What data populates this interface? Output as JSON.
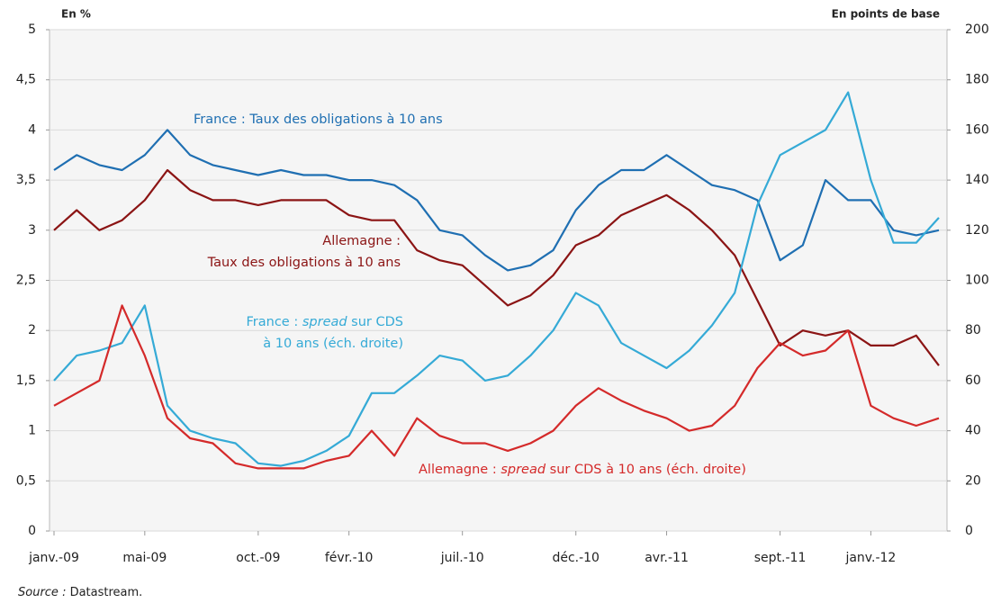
{
  "chart_data": {
    "type": "line",
    "categories": [
      "janv.-09",
      null,
      null,
      null,
      "mai-09",
      null,
      null,
      null,
      null,
      "oct.-09",
      null,
      null,
      null,
      "févr.-10",
      null,
      null,
      null,
      null,
      "juil.-10",
      null,
      null,
      null,
      null,
      "déc.-10",
      null,
      null,
      null,
      "avr.-11",
      null,
      null,
      null,
      null,
      "sept.-11",
      null,
      null,
      null,
      "janv.-12",
      null,
      null,
      null
    ],
    "series": [
      {
        "name": "France : Taux des obligations à 10 ans",
        "color": "#1f6fb2",
        "axis": "y",
        "values": [
          3.6,
          3.75,
          3.65,
          3.6,
          3.75,
          4.0,
          3.75,
          3.65,
          3.6,
          3.55,
          3.6,
          3.55,
          3.55,
          3.5,
          3.5,
          3.45,
          3.3,
          3.0,
          2.95,
          2.75,
          2.6,
          2.65,
          2.8,
          3.2,
          3.45,
          3.6,
          3.6,
          3.75,
          3.6,
          3.45,
          3.4,
          3.3,
          2.7,
          2.85,
          3.5,
          3.3,
          3.3,
          3.0,
          2.95,
          3.0
        ]
      },
      {
        "name": "Allemagne : Taux des obligations à 10 ans",
        "color": "#8b1414",
        "axis": "y",
        "values": [
          3.0,
          3.2,
          3.0,
          3.1,
          3.3,
          3.6,
          3.4,
          3.3,
          3.3,
          3.25,
          3.3,
          3.3,
          3.3,
          3.15,
          3.1,
          3.1,
          2.8,
          2.7,
          2.65,
          2.45,
          2.25,
          2.35,
          2.55,
          2.85,
          2.95,
          3.15,
          3.25,
          3.35,
          3.2,
          3.0,
          2.75,
          2.3,
          1.85,
          2.0,
          1.95,
          2.0,
          1.85,
          1.85,
          1.95,
          1.65
        ]
      },
      {
        "name": "France : spread sur CDS à 10 ans (éch. droite)",
        "color": "#35aad6",
        "axis": "y2",
        "values": [
          60,
          70,
          72,
          75,
          90,
          50,
          40,
          37,
          35,
          27,
          26,
          28,
          32,
          38,
          55,
          55,
          62,
          70,
          68,
          60,
          62,
          70,
          80,
          95,
          90,
          75,
          70,
          65,
          72,
          82,
          95,
          130,
          150,
          155,
          160,
          175,
          140,
          115,
          115,
          125
        ]
      },
      {
        "name": "Allemagne : spread sur CDS à 10 ans (éch. droite)",
        "color": "#d42a2a",
        "axis": "y2",
        "values": [
          50,
          55,
          60,
          90,
          70,
          45,
          37,
          35,
          27,
          25,
          25,
          25,
          28,
          30,
          40,
          30,
          45,
          38,
          35,
          35,
          32,
          35,
          40,
          50,
          57,
          52,
          48,
          45,
          40,
          42,
          50,
          65,
          75,
          70,
          72,
          80,
          50,
          45,
          42,
          45
        ]
      }
    ],
    "ylabel": "En %",
    "y2label": "En points de base",
    "ylim": [
      0,
      5
    ],
    "yticks": [
      0,
      {
        "value": 0.5,
        "label": "0,5"
      },
      1,
      {
        "value": 1.5,
        "label": "1,5"
      },
      2,
      {
        "value": 2.5,
        "label": "2,5"
      },
      3,
      {
        "value": 3.5,
        "label": "3,5"
      },
      4,
      {
        "value": 4.5,
        "label": "4,5"
      },
      5
    ],
    "y2lim": [
      0,
      200
    ],
    "y2ticks": [
      0,
      20,
      40,
      60,
      80,
      100,
      120,
      140,
      160,
      180,
      200
    ],
    "grid": true,
    "annotations": {
      "france_bond": [
        "France : Taux des obligations à 10 ans"
      ],
      "germany_bond": [
        "Allemagne :",
        "Taux des obligations à 10 ans"
      ],
      "france_cds": [
        "France : ",
        "spread",
        " sur CDS",
        "à 10 ans (éch. droite)"
      ],
      "germany_cds": [
        "Allemagne : ",
        "spread",
        " sur CDS à 10 ans (éch. droite)"
      ]
    },
    "source": [
      "Source :",
      " Datastream."
    ]
  }
}
